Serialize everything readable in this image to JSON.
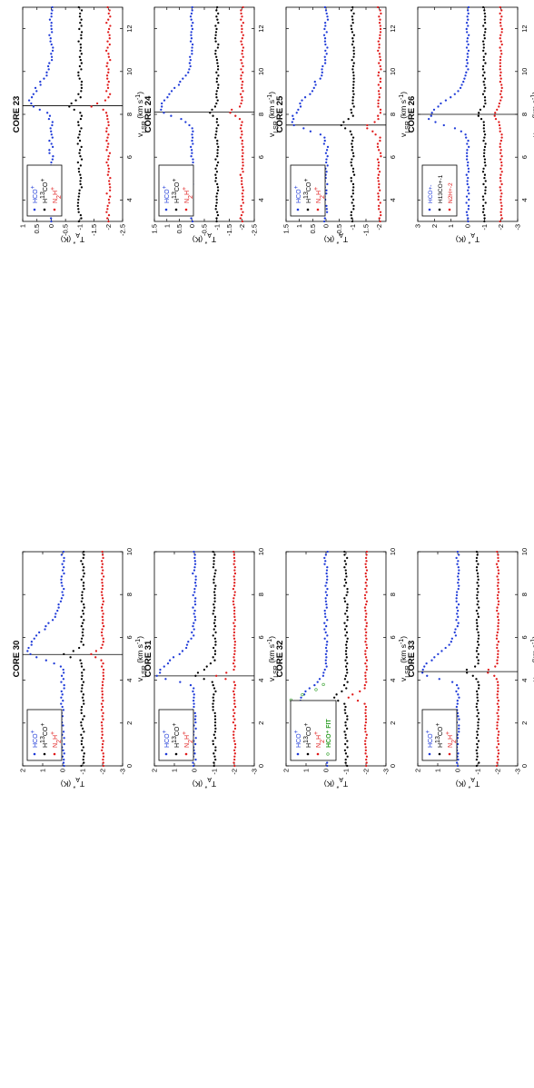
{
  "figure": {
    "ylabel": "T_A* (K)",
    "xlabel": "v_LSR (km s⁻¹)",
    "ylabel_base": "T",
    "ylabel_sub": "A",
    "ylabel_sup": "*",
    "ylabel_unit": " (K)",
    "xlabel_base": "v",
    "xlabel_sub": "LSR",
    "xlabel_unit": " (km s",
    "xlabel_exp": "-1",
    "xlabel_close": ")",
    "colors": {
      "HCO+": "#1f3bd8",
      "H13CO+": "#000000",
      "N2H+": "#e01b1b",
      "fit": "#33a02c"
    }
  },
  "legend_text": {
    "standard": [
      {
        "base": "HCO",
        "sup": "+",
        "sub": "",
        "pre": ""
      },
      {
        "pre": "H",
        "pre_sup": "13",
        "base": "CO",
        "sup": "+",
        "sub": ""
      },
      {
        "base": "N",
        "sub": "2",
        "base2": "H",
        "sup": "+",
        "pre": ""
      }
    ],
    "core26": [
      "HCO+-",
      "H13CO+-1",
      "N2H+-2"
    ],
    "fit": "HCO⁺ FIT"
  },
  "chart_data": [
    {
      "type": "scatter",
      "title": "CORE 23",
      "xlim": [
        3,
        13
      ],
      "ylim": [
        -2.5,
        1
      ],
      "xticks": [
        "4",
        "6",
        "8",
        "10",
        "12"
      ],
      "yticks": [
        "-2.5",
        "-2",
        "-1.5",
        "-1",
        "-0.5",
        "0",
        "0.5",
        "1"
      ],
      "vline": 8.4,
      "series": [
        {
          "name": "HCO+",
          "baseline": 0,
          "peak": 0.75,
          "center": 8.5,
          "blue_wing": 0.25,
          "red_wing": 0.8,
          "offset": -0.3,
          "noise": 0.07
        },
        {
          "name": "H13CO+",
          "baseline": -1,
          "peak": 0.35,
          "center": 8.4,
          "blue_wing": 0.15,
          "red_wing": 0.15,
          "offset": 0,
          "noise": 0.07
        },
        {
          "name": "N2H+",
          "baseline": -2,
          "peak": 0.55,
          "center": 8.4,
          "blue_wing": 0.12,
          "red_wing": 0.12,
          "offset": 0,
          "noise": 0.07
        }
      ]
    },
    {
      "type": "scatter",
      "title": "CORE 24",
      "xlim": [
        3,
        13
      ],
      "ylim": [
        -2.5,
        1.5
      ],
      "xticks": [
        "4",
        "6",
        "8",
        "10",
        "12"
      ],
      "yticks": [
        "-2.5",
        "-2",
        "-1.5",
        "-1",
        "-0.5",
        "0",
        "0.5",
        "1",
        "1.5"
      ],
      "vline": 8.1,
      "series": [
        {
          "name": "HCO+",
          "baseline": 0,
          "peak": 1.25,
          "center": 8.2,
          "blue_wing": 0.3,
          "red_wing": 0.9,
          "offset": 0.05,
          "noise": 0.05
        },
        {
          "name": "H13CO+",
          "baseline": -1,
          "peak": 0.3,
          "center": 8.1,
          "blue_wing": 0.15,
          "red_wing": 0.15,
          "offset": 0,
          "noise": 0.06
        },
        {
          "name": "N2H+",
          "baseline": -2,
          "peak": 0.5,
          "center": 8.1,
          "blue_wing": 0.15,
          "red_wing": 0.15,
          "offset": 0,
          "noise": 0.06
        }
      ]
    },
    {
      "type": "scatter",
      "title": "CORE 25",
      "xlim": [
        3,
        13
      ],
      "ylim": [
        -2.25,
        1.5
      ],
      "xticks": [
        "4",
        "6",
        "8",
        "10",
        "12"
      ],
      "yticks": [
        "-2",
        "-1.5",
        "-1",
        "-0.5",
        "0",
        "0.5",
        "1",
        "1.5"
      ],
      "vline": 7.5,
      "series": [
        {
          "name": "HCO+",
          "baseline": 0,
          "peak": 1.25,
          "center": 7.6,
          "blue_wing": 0.3,
          "red_wing": 1.2,
          "offset": 0.15,
          "noise": 0.07
        },
        {
          "name": "H13CO+",
          "baseline": -1,
          "peak": 0.4,
          "center": 7.5,
          "blue_wing": 0.15,
          "red_wing": 0.2,
          "offset": 0,
          "noise": 0.06
        },
        {
          "name": "N2H+",
          "baseline": -2,
          "peak": 0.45,
          "center": 7.4,
          "blue_wing": 0.2,
          "red_wing": 0.2,
          "offset": 0,
          "noise": 0.06
        }
      ]
    },
    {
      "type": "scatter",
      "title": "CORE 26",
      "xlim": [
        3,
        13
      ],
      "ylim": [
        -3,
        3
      ],
      "xticks": [
        "4",
        "6",
        "8",
        "10",
        "12"
      ],
      "yticks": [
        "-3",
        "-2",
        "-1",
        "0",
        "1",
        "2",
        "3"
      ],
      "vline": 8.0,
      "series": [
        {
          "name": "HCO+",
          "baseline": 0,
          "peak": 2.3,
          "center": 7.8,
          "blue_wing": 0.3,
          "red_wing": 0.8,
          "offset": 0.5,
          "noise": 0.08
        },
        {
          "name": "H13CO+",
          "baseline": -1,
          "peak": 0.4,
          "center": 8.0,
          "blue_wing": 0.2,
          "red_wing": 0.2,
          "offset": 0,
          "noise": 0.08
        },
        {
          "name": "N2H+",
          "baseline": -2,
          "peak": 0.4,
          "center": 8.0,
          "blue_wing": 0.25,
          "red_wing": 0.25,
          "offset": 0,
          "noise": 0.06
        }
      ]
    },
    {
      "type": "scatter",
      "title": "CORE 30",
      "xlim": [
        0,
        10
      ],
      "ylim": [
        -3,
        2
      ],
      "xticks": [
        "0",
        "2",
        "4",
        "6",
        "8",
        "10"
      ],
      "yticks": [
        "-3",
        "-2",
        "-1",
        "0",
        "1",
        "2"
      ],
      "vline": 5.2,
      "series": [
        {
          "name": "HCO+",
          "baseline": 0,
          "peak": 1.7,
          "center": 5.3,
          "blue_wing": 0.3,
          "red_wing": 1.0,
          "offset": 0.1,
          "noise": 0.08
        },
        {
          "name": "H13CO+",
          "baseline": -1,
          "peak": 0.9,
          "center": 5.2,
          "blue_wing": 0.15,
          "red_wing": 0.15,
          "offset": 0,
          "noise": 0.08
        },
        {
          "name": "N2H+",
          "baseline": -2,
          "peak": 0.55,
          "center": 5.2,
          "blue_wing": 0.15,
          "red_wing": 0.15,
          "offset": 0,
          "noise": 0.05
        }
      ]
    },
    {
      "type": "scatter",
      "title": "CORE 31",
      "xlim": [
        0,
        10
      ],
      "ylim": [
        -3,
        2
      ],
      "xticks": [
        "0",
        "2",
        "4",
        "6",
        "8",
        "10"
      ],
      "yticks": [
        "-3",
        "-2",
        "-1",
        "0",
        "1",
        "2"
      ],
      "vline": 4.2,
      "series": [
        {
          "name": "HCO+",
          "baseline": 0,
          "peak": 1.8,
          "center": 4.2,
          "blue_wing": 0.2,
          "red_wing": 0.8,
          "offset": 0.1,
          "noise": 0.08
        },
        {
          "name": "H13CO+",
          "baseline": -1,
          "peak": 0.9,
          "center": 4.2,
          "blue_wing": 0.15,
          "red_wing": 0.3,
          "offset": 0,
          "noise": 0.07
        },
        {
          "name": "N2H+",
          "baseline": -2,
          "peak": 0.9,
          "center": 4.2,
          "blue_wing": 0.12,
          "red_wing": 0.12,
          "offset": 0,
          "noise": 0.05
        }
      ]
    },
    {
      "type": "scatter",
      "title": "CORE 32",
      "xlim": [
        0,
        10
      ],
      "ylim": [
        -3,
        2
      ],
      "xticks": [
        "0",
        "2",
        "4",
        "6",
        "8",
        "10"
      ],
      "yticks": [
        "-3",
        "-2",
        "-1",
        "0",
        "1",
        "2"
      ],
      "vline": null,
      "series": [
        {
          "name": "HCO+",
          "baseline": 0,
          "peak": 1.3,
          "center": 3.0,
          "blue_wing": 0.25,
          "red_wing": 0.6,
          "offset": 0.15,
          "noise": 0.08
        },
        {
          "name": "H13CO+",
          "baseline": -1,
          "peak": 0.6,
          "center": 3.2,
          "blue_wing": 0.15,
          "red_wing": 0.2,
          "offset": 0,
          "noise": 0.08
        },
        {
          "name": "N2H+",
          "baseline": -2,
          "peak": 0.9,
          "center": 3.2,
          "blue_wing": 0.12,
          "red_wing": 0.2,
          "offset": 0,
          "noise": 0.05
        },
        {
          "name": "HCO+ FIT",
          "baseline": 0,
          "peak": 1.8,
          "center": 3.0,
          "blue_wing": 0.25,
          "red_wing": 0.35,
          "offset": 0,
          "noise": 0,
          "range": [
            2.6,
            3.8
          ]
        }
      ]
    },
    {
      "type": "scatter",
      "title": "CORE 33",
      "xlim": [
        0,
        10
      ],
      "ylim": [
        -3,
        2
      ],
      "xticks": [
        "0",
        "2",
        "4",
        "6",
        "8",
        "10"
      ],
      "yticks": [
        "-3",
        "-2",
        "-1",
        "0",
        "1",
        "2"
      ],
      "vline": 4.4,
      "series": [
        {
          "name": "HCO+",
          "baseline": 0,
          "peak": 1.8,
          "center": 4.3,
          "blue_wing": 0.2,
          "red_wing": 0.8,
          "offset": 0.15,
          "noise": 0.07
        },
        {
          "name": "H13CO+",
          "baseline": -1,
          "peak": 0.6,
          "center": 4.4,
          "blue_wing": 0.15,
          "red_wing": 0.15,
          "offset": 0,
          "noise": 0.06
        },
        {
          "name": "N2H+",
          "baseline": -2,
          "peak": 0.5,
          "center": 4.4,
          "blue_wing": 0.15,
          "red_wing": 0.15,
          "offset": 0,
          "noise": 0.05
        }
      ]
    }
  ]
}
